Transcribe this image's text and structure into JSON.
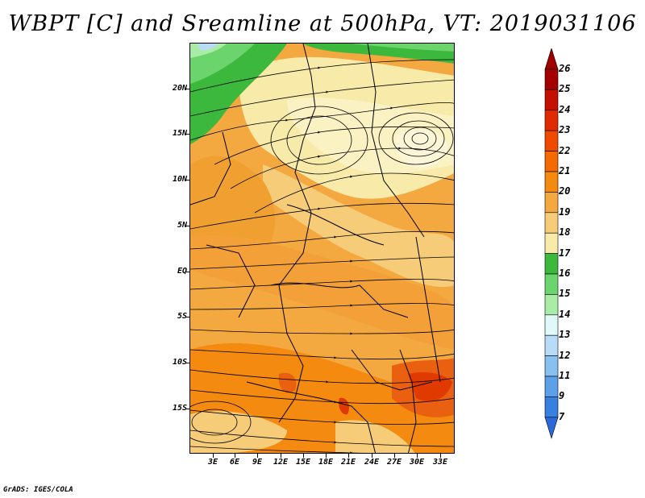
{
  "title": "WBPT [C] and Sreamline at 500hPa, VT: 2019031106",
  "credit": "GrADS: IGES/COLA",
  "y_axis_labels": [
    "20N",
    "15N",
    "10N",
    "5N",
    "EQ",
    "5S",
    "10S",
    "15S"
  ],
  "x_axis_labels": [
    "3E",
    "6E",
    "9E",
    "12E",
    "15E",
    "18E",
    "21E",
    "24E",
    "27E",
    "30E",
    "33E"
  ],
  "colorbar": {
    "labels": [
      "26",
      "25",
      "24",
      "23",
      "22",
      "21",
      "20",
      "19",
      "18",
      "17",
      "16",
      "15",
      "14",
      "13",
      "12",
      "11",
      "9",
      "7"
    ],
    "colors": [
      "#a50000",
      "#c41000",
      "#e02a00",
      "#f04a00",
      "#f46a00",
      "#f48a10",
      "#f4a840",
      "#f6cc78",
      "#f8eaa8",
      "#3cb83c",
      "#6cd46c",
      "#a8eca8",
      "#e0f8f8",
      "#b8dcf8",
      "#88c0f0",
      "#5ca0e8",
      "#3880e0",
      "#1c60d8"
    ]
  },
  "legend_colors": {
    "upper_tip": "#a00000",
    "lower_tip": "#2a6ad8"
  }
}
